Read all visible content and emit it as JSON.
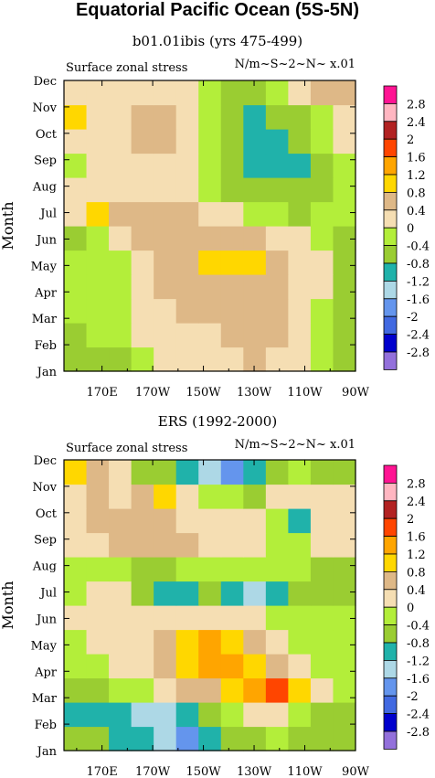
{
  "page_title": "Equatorial Pacific Ocean (5S-5N)",
  "colors": {
    "-3.0": "#9370DB",
    "-2.6": "#0000CD",
    "-2.2": "#4169E1",
    "-1.8": "#6495ED",
    "-1.4": "#ADD8E6",
    "-1.0": "#20B2AA",
    "-0.6": "#9ACD32",
    "-0.2": "#B3EE3A",
    "0.2": "#F5DEB3",
    "0.6": "#DEB887",
    "1.0": "#FFD700",
    "1.4": "#FFA500",
    "1.8": "#FF4500",
    "2.2": "#B22222",
    "2.6": "#FFB6C1",
    "3.0": "#FF1493"
  },
  "chart_data": [
    {
      "type": "heatmap",
      "title": "b01.01ibis (yrs 475-499)",
      "subtitle_left": "Surface zonal stress",
      "subtitle_right": "N/m~S~2~N~ x.01",
      "ylabel": "Month",
      "x_ticks": [
        "170E",
        "170W",
        "150W",
        "130W",
        "110W",
        "90W"
      ],
      "y_ticks": [
        "Jan",
        "Feb",
        "Mar",
        "Apr",
        "May",
        "Jun",
        "Jul",
        "Aug",
        "Sep",
        "Oct",
        "Nov",
        "Dec"
      ],
      "colorbar_labels": [
        "2.8",
        "2.4",
        "2",
        "1.6",
        "1.2",
        "0.8",
        "0.4",
        "0",
        "-0.4",
        "-0.8",
        "-1.2",
        "-1.6",
        "-2",
        "-2.4",
        "-2.8"
      ],
      "xlim": [
        "155E",
        "90W"
      ],
      "ylim": [
        "Jan",
        "Dec"
      ],
      "grid": [
        [
          -0.6,
          -0.6,
          -0.6,
          -0.2,
          0.2,
          0.2,
          0.2,
          0.2,
          0.6,
          0.2,
          0.2,
          -0.2,
          -0.6
        ],
        [
          -0.6,
          -0.2,
          -0.2,
          0.2,
          0.2,
          0.2,
          0.2,
          0.6,
          0.6,
          0.6,
          0.2,
          -0.2,
          -0.6
        ],
        [
          -0.2,
          -0.2,
          -0.2,
          0.2,
          0.2,
          0.6,
          0.6,
          0.6,
          0.6,
          0.6,
          0.2,
          -0.2,
          -0.6
        ],
        [
          -0.2,
          -0.2,
          -0.2,
          0.2,
          0.6,
          0.6,
          0.6,
          0.6,
          0.6,
          0.6,
          0.2,
          0.2,
          -0.6
        ],
        [
          -0.2,
          -0.2,
          -0.2,
          0.2,
          0.6,
          0.6,
          1.0,
          1.0,
          1.0,
          0.6,
          0.2,
          0.2,
          -0.6
        ],
        [
          -0.6,
          -0.2,
          0.2,
          0.6,
          0.6,
          0.6,
          0.6,
          0.6,
          0.6,
          0.2,
          0.2,
          -0.2,
          -0.6
        ],
        [
          0.2,
          1.0,
          0.6,
          0.6,
          0.6,
          0.6,
          0.2,
          0.2,
          -0.2,
          -0.2,
          -0.6,
          -0.2,
          -0.2
        ],
        [
          0.2,
          0.2,
          0.2,
          0.2,
          0.2,
          0.2,
          -0.2,
          -0.6,
          -0.6,
          -0.6,
          -0.6,
          -0.6,
          -0.2
        ],
        [
          -0.2,
          0.2,
          0.2,
          0.2,
          0.2,
          0.2,
          -0.2,
          -0.6,
          -1.0,
          -1.0,
          -1.0,
          -0.6,
          -0.2
        ],
        [
          0.2,
          0.2,
          0.2,
          0.6,
          0.6,
          0.2,
          -0.2,
          -0.6,
          -1.0,
          -1.0,
          -0.6,
          -0.2,
          0.2
        ],
        [
          1.0,
          0.2,
          0.2,
          0.6,
          0.6,
          0.2,
          -0.2,
          -0.6,
          -1.0,
          -0.6,
          -0.6,
          -0.2,
          0.2
        ],
        [
          0.2,
          0.2,
          0.2,
          0.2,
          0.2,
          0.2,
          -0.2,
          -0.6,
          -0.6,
          -0.2,
          0.2,
          0.6,
          0.6
        ]
      ]
    },
    {
      "type": "heatmap",
      "title": "ERS (1992-2000)",
      "subtitle_left": "Surface zonal stress",
      "subtitle_right": "N/m~S~2~N~ x.01",
      "ylabel": "Month",
      "x_ticks": [
        "170E",
        "170W",
        "150W",
        "130W",
        "110W",
        "90W"
      ],
      "y_ticks": [
        "Jan",
        "Feb",
        "Mar",
        "Apr",
        "May",
        "Jun",
        "Jul",
        "Aug",
        "Sep",
        "Oct",
        "Nov",
        "Dec"
      ],
      "colorbar_labels": [
        "2.8",
        "2.4",
        "2",
        "1.6",
        "1.2",
        "0.8",
        "0.4",
        "0",
        "-0.4",
        "-0.8",
        "-1.2",
        "-1.6",
        "-2",
        "-2.4",
        "-2.8"
      ],
      "xlim": [
        "155E",
        "90W"
      ],
      "ylim": [
        "Jan",
        "Dec"
      ],
      "grid": [
        [
          -0.6,
          -0.6,
          -1.0,
          -1.0,
          -1.4,
          -1.8,
          -1.0,
          -0.6,
          -0.6,
          -0.2,
          -0.6,
          -0.6,
          -0.6
        ],
        [
          -1.0,
          -1.0,
          -1.0,
          -1.4,
          -1.4,
          -1.0,
          -0.6,
          -0.2,
          0.2,
          0.2,
          -0.2,
          -0.6,
          -0.6
        ],
        [
          -0.6,
          -0.6,
          -0.2,
          -0.2,
          0.2,
          0.6,
          0.6,
          1.0,
          1.4,
          1.8,
          1.0,
          0.2,
          -0.2
        ],
        [
          -0.2,
          -0.2,
          0.2,
          0.2,
          0.6,
          1.0,
          1.4,
          1.4,
          1.0,
          0.6,
          0.2,
          -0.2,
          -0.2
        ],
        [
          -0.2,
          0.2,
          0.2,
          0.2,
          0.6,
          1.0,
          1.4,
          1.0,
          0.6,
          0.2,
          -0.2,
          -0.2,
          -0.2
        ],
        [
          0.2,
          0.2,
          0.2,
          0.2,
          0.2,
          0.2,
          0.2,
          0.2,
          0.2,
          -0.2,
          -0.2,
          -0.2,
          -0.2
        ],
        [
          -0.2,
          0.2,
          0.2,
          -0.6,
          -1.0,
          -1.0,
          -0.6,
          -1.0,
          -1.4,
          -1.0,
          -0.6,
          -0.6,
          -0.6
        ],
        [
          -0.2,
          -0.2,
          -0.2,
          -0.6,
          -0.6,
          -0.2,
          -0.2,
          -0.2,
          -0.2,
          -0.2,
          -0.2,
          -0.6,
          -0.6
        ],
        [
          0.2,
          0.2,
          0.6,
          0.6,
          0.6,
          0.6,
          0.2,
          0.2,
          0.2,
          -0.2,
          -0.2,
          0.2,
          0.2
        ],
        [
          0.2,
          0.6,
          0.6,
          0.6,
          0.6,
          0.2,
          0.2,
          0.2,
          0.2,
          -0.2,
          -1.0,
          0.2,
          0.2
        ],
        [
          0.2,
          0.6,
          0.2,
          0.6,
          1.0,
          0.2,
          -0.2,
          -0.2,
          -0.6,
          0.2,
          0.2,
          0.2,
          0.2
        ],
        [
          1.0,
          0.6,
          0.2,
          -0.6,
          -0.6,
          -1.0,
          -1.4,
          -1.8,
          -1.0,
          -0.6,
          -0.2,
          -0.6,
          -0.6
        ]
      ]
    }
  ]
}
